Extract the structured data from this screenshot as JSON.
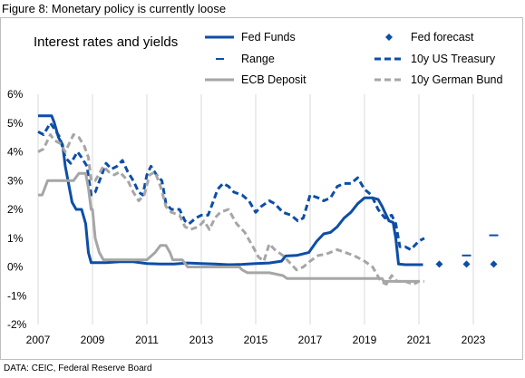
{
  "figure": {
    "title": "Figure 8: Monetary policy is currently loose",
    "source": "DATA: CEIC, Federal Reserve Board"
  },
  "chart_data": {
    "type": "line",
    "title": "Interest rates and yields",
    "xlabel": "",
    "ylabel": "",
    "xlim": [
      2007,
      2024.3
    ],
    "ylim": [
      -2,
      6
    ],
    "x_ticks": [
      "2007",
      "2009",
      "2011",
      "2013",
      "2015",
      "2017",
      "2019",
      "2021",
      "2023"
    ],
    "y_ticks": [
      "6%",
      "5%",
      "4%",
      "3%",
      "2%",
      "1%",
      "0%",
      "-1%",
      "-2%"
    ],
    "grid": "vertical",
    "legend": {
      "placement": "top",
      "columns": 2
    },
    "series": [
      {
        "name": "Fed Funds",
        "style": "solid",
        "color": "#0d4ea6",
        "x": [
          2007.0,
          2007.3,
          2007.5,
          2007.6,
          2007.75,
          2007.9,
          2008.0,
          2008.1,
          2008.25,
          2008.4,
          2008.6,
          2008.75,
          2008.85,
          2008.95,
          2009.1,
          2009.5,
          2010.0,
          2010.5,
          2011.0,
          2011.5,
          2012.0,
          2012.5,
          2013.0,
          2013.5,
          2014.0,
          2014.5,
          2015.0,
          2015.5,
          2015.95,
          2016.1,
          2016.5,
          2016.95,
          2017.1,
          2017.25,
          2017.5,
          2017.75,
          2018.0,
          2018.25,
          2018.5,
          2018.75,
          2019.0,
          2019.3,
          2019.5,
          2019.65,
          2019.75,
          2019.9,
          2020.05,
          2020.15,
          2020.25,
          2020.5,
          2021.0,
          2021.15
        ],
        "y": [
          5.25,
          5.25,
          5.25,
          5.0,
          4.5,
          4.25,
          3.5,
          3.0,
          2.25,
          2.0,
          2.0,
          1.5,
          0.5,
          0.15,
          0.15,
          0.15,
          0.18,
          0.18,
          0.12,
          0.1,
          0.1,
          0.14,
          0.12,
          0.1,
          0.08,
          0.09,
          0.12,
          0.14,
          0.2,
          0.38,
          0.4,
          0.5,
          0.7,
          0.9,
          1.15,
          1.2,
          1.4,
          1.7,
          1.9,
          2.2,
          2.4,
          2.4,
          2.35,
          2.1,
          1.9,
          1.6,
          1.55,
          1.0,
          0.1,
          0.08,
          0.08,
          0.08
        ]
      },
      {
        "name": "Fed forecast",
        "style": "diamond",
        "color": "#0d4ea6",
        "x": [
          2021.75,
          2022.75,
          2023.75
        ],
        "y": [
          0.1,
          0.1,
          0.1
        ]
      },
      {
        "name": "Range",
        "style": "dash-marker",
        "color": "#0d4ea6",
        "x": [
          2022.75,
          2023.75
        ],
        "y": [
          0.4,
          1.1
        ]
      },
      {
        "name": "10y US Treasury",
        "style": "dashed",
        "color": "#0d4ea6",
        "x": [
          2007.0,
          2007.2,
          2007.45,
          2007.6,
          2007.8,
          2008.0,
          2008.2,
          2008.45,
          2008.6,
          2008.8,
          2008.95,
          2009.1,
          2009.3,
          2009.5,
          2009.7,
          2009.9,
          2010.1,
          2010.3,
          2010.5,
          2010.7,
          2010.85,
          2011.0,
          2011.15,
          2011.35,
          2011.55,
          2011.7,
          2011.9,
          2012.2,
          2012.4,
          2012.55,
          2012.8,
          2013.0,
          2013.25,
          2013.45,
          2013.6,
          2013.8,
          2014.0,
          2014.2,
          2014.5,
          2014.75,
          2015.0,
          2015.2,
          2015.5,
          2015.7,
          2016.0,
          2016.3,
          2016.55,
          2016.75,
          2017.0,
          2017.3,
          2017.5,
          2017.75,
          2018.0,
          2018.25,
          2018.5,
          2018.75,
          2019.0,
          2019.25,
          2019.5,
          2019.75,
          2020.0,
          2020.15,
          2020.3,
          2020.5,
          2020.7,
          2021.0,
          2021.2
        ],
        "y": [
          4.7,
          4.6,
          5.0,
          4.8,
          4.5,
          3.8,
          3.6,
          4.0,
          3.8,
          3.5,
          2.5,
          2.6,
          3.1,
          3.6,
          3.4,
          3.5,
          3.7,
          3.3,
          3.0,
          2.6,
          2.5,
          3.2,
          3.5,
          3.2,
          3.0,
          2.2,
          2.0,
          2.0,
          1.6,
          1.5,
          1.7,
          1.8,
          1.8,
          2.3,
          2.7,
          2.9,
          2.8,
          2.6,
          2.5,
          2.3,
          1.9,
          2.1,
          2.3,
          2.2,
          1.9,
          1.8,
          1.6,
          1.7,
          2.5,
          2.4,
          2.3,
          2.4,
          2.8,
          2.9,
          2.9,
          3.1,
          2.7,
          2.5,
          2.0,
          1.7,
          1.8,
          1.5,
          0.7,
          0.7,
          0.6,
          0.9,
          1.0
        ]
      },
      {
        "name": "ECB Deposit",
        "style": "solid",
        "color": "#a6a6a6",
        "x": [
          2007.0,
          2007.15,
          2007.35,
          2007.5,
          2007.75,
          2008.0,
          2008.3,
          2008.5,
          2008.75,
          2008.85,
          2008.95,
          2009.0,
          2009.1,
          2009.25,
          2009.4,
          2009.5,
          2010.0,
          2010.5,
          2011.0,
          2011.3,
          2011.5,
          2011.7,
          2011.85,
          2011.95,
          2012.3,
          2012.5,
          2012.6,
          2013.0,
          2013.5,
          2014.0,
          2014.4,
          2014.5,
          2014.7,
          2015.0,
          2015.5,
          2016.0,
          2016.15,
          2016.5,
          2017.0,
          2018.0,
          2019.0,
          2019.65,
          2019.7,
          2020.0,
          2021.0
        ],
        "y": [
          2.5,
          2.5,
          3.0,
          3.0,
          3.0,
          3.0,
          3.0,
          3.25,
          3.25,
          2.75,
          2.0,
          2.0,
          1.0,
          0.5,
          0.25,
          0.25,
          0.25,
          0.25,
          0.25,
          0.5,
          0.75,
          0.75,
          0.5,
          0.25,
          0.25,
          0.0,
          0.0,
          0.0,
          0.0,
          0.0,
          0.0,
          -0.1,
          -0.2,
          -0.2,
          -0.2,
          -0.3,
          -0.4,
          -0.4,
          -0.4,
          -0.4,
          -0.4,
          -0.4,
          -0.5,
          -0.5,
          -0.5
        ]
      },
      {
        "name": "10y German Bund",
        "style": "dashed",
        "color": "#a6a6a6",
        "x": [
          2007.0,
          2007.2,
          2007.45,
          2007.6,
          2007.8,
          2008.0,
          2008.3,
          2008.5,
          2008.7,
          2008.85,
          2008.95,
          2009.1,
          2009.4,
          2009.6,
          2009.8,
          2010.0,
          2010.3,
          2010.5,
          2010.7,
          2010.9,
          2011.1,
          2011.3,
          2011.5,
          2011.7,
          2011.9,
          2012.2,
          2012.4,
          2012.6,
          2012.9,
          2013.1,
          2013.3,
          2013.5,
          2013.7,
          2014.0,
          2014.3,
          2014.6,
          2014.9,
          2015.1,
          2015.3,
          2015.5,
          2015.7,
          2016.0,
          2016.25,
          2016.5,
          2016.75,
          2017.0,
          2017.3,
          2017.6,
          2018.0,
          2018.3,
          2018.6,
          2019.0,
          2019.3,
          2019.6,
          2019.8,
          2020.0,
          2020.2,
          2020.5,
          2020.8,
          2021.0,
          2021.2
        ],
        "y": [
          4.0,
          4.1,
          4.6,
          4.4,
          4.3,
          4.0,
          4.6,
          4.5,
          4.2,
          3.8,
          3.0,
          3.0,
          3.5,
          3.3,
          3.2,
          3.3,
          3.0,
          2.6,
          2.3,
          2.5,
          3.2,
          3.3,
          2.8,
          2.1,
          1.9,
          1.8,
          1.4,
          1.3,
          1.4,
          1.6,
          1.3,
          1.7,
          1.9,
          2.0,
          1.5,
          1.2,
          0.7,
          0.35,
          0.2,
          0.8,
          0.6,
          0.4,
          0.15,
          -0.1,
          0.0,
          0.2,
          0.4,
          0.45,
          0.6,
          0.5,
          0.4,
          0.2,
          0.0,
          -0.5,
          -0.6,
          -0.3,
          -0.5,
          -0.5,
          -0.6,
          -0.5,
          -0.5
        ]
      }
    ]
  }
}
